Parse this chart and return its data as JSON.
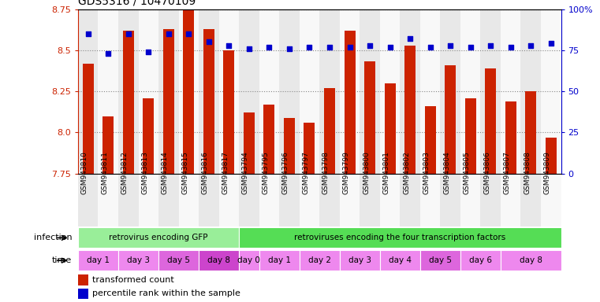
{
  "title": "GDS5316 / 10470109",
  "samples": [
    "GSM943810",
    "GSM943811",
    "GSM943812",
    "GSM943813",
    "GSM943814",
    "GSM943815",
    "GSM943816",
    "GSM943817",
    "GSM943794",
    "GSM943795",
    "GSM943796",
    "GSM943797",
    "GSM943798",
    "GSM943799",
    "GSM943800",
    "GSM943801",
    "GSM943802",
    "GSM943803",
    "GSM943804",
    "GSM943805",
    "GSM943806",
    "GSM943807",
    "GSM943808",
    "GSM943809"
  ],
  "bar_values": [
    8.42,
    8.1,
    8.62,
    8.21,
    8.63,
    8.75,
    8.63,
    8.5,
    8.12,
    8.17,
    8.09,
    8.06,
    8.27,
    8.62,
    8.43,
    8.3,
    8.53,
    8.16,
    8.41,
    8.21,
    8.39,
    8.19,
    8.25,
    7.97
  ],
  "percentile_values": [
    85,
    73,
    85,
    74,
    85,
    85,
    80,
    78,
    76,
    77,
    76,
    77,
    77,
    77,
    78,
    77,
    82,
    77,
    78,
    77,
    78,
    77,
    78,
    79
  ],
  "bar_color": "#cc2200",
  "percentile_color": "#0000cc",
  "ylim_left": [
    7.75,
    8.75
  ],
  "ylim_right": [
    0,
    100
  ],
  "yticks_left": [
    7.75,
    8.0,
    8.25,
    8.5,
    8.75
  ],
  "yticks_right": [
    0,
    25,
    50,
    75,
    100
  ],
  "infection_groups": [
    {
      "text": "retrovirus encoding GFP",
      "start": 0,
      "end": 7,
      "color": "#99ee99"
    },
    {
      "text": "retroviruses encoding the four transcription factors",
      "start": 8,
      "end": 23,
      "color": "#55dd55"
    }
  ],
  "time_groups": [
    {
      "text": "day 1",
      "start": 0,
      "end": 1,
      "color": "#ee88ee"
    },
    {
      "text": "day 3",
      "start": 2,
      "end": 3,
      "color": "#ee88ee"
    },
    {
      "text": "day 5",
      "start": 4,
      "end": 5,
      "color": "#dd66dd"
    },
    {
      "text": "day 8",
      "start": 6,
      "end": 7,
      "color": "#cc44cc"
    },
    {
      "text": "day 0",
      "start": 8,
      "end": 8,
      "color": "#ee88ee"
    },
    {
      "text": "day 1",
      "start": 9,
      "end": 10,
      "color": "#ee88ee"
    },
    {
      "text": "day 2",
      "start": 11,
      "end": 12,
      "color": "#ee88ee"
    },
    {
      "text": "day 3",
      "start": 13,
      "end": 14,
      "color": "#ee88ee"
    },
    {
      "text": "day 4",
      "start": 15,
      "end": 16,
      "color": "#ee88ee"
    },
    {
      "text": "day 5",
      "start": 17,
      "end": 18,
      "color": "#dd66dd"
    },
    {
      "text": "day 6",
      "start": 19,
      "end": 20,
      "color": "#ee88ee"
    },
    {
      "text": "day 8",
      "start": 21,
      "end": 23,
      "color": "#ee88ee"
    }
  ],
  "legend_items": [
    {
      "label": "transformed count",
      "color": "#cc2200"
    },
    {
      "label": "percentile rank within the sample",
      "color": "#0000cc"
    }
  ],
  "background_color": "#ffffff",
  "grid_color": "#888888",
  "tick_color_left": "#cc2200",
  "tick_color_right": "#0000cc",
  "label_left": "infection",
  "label_time": "time"
}
